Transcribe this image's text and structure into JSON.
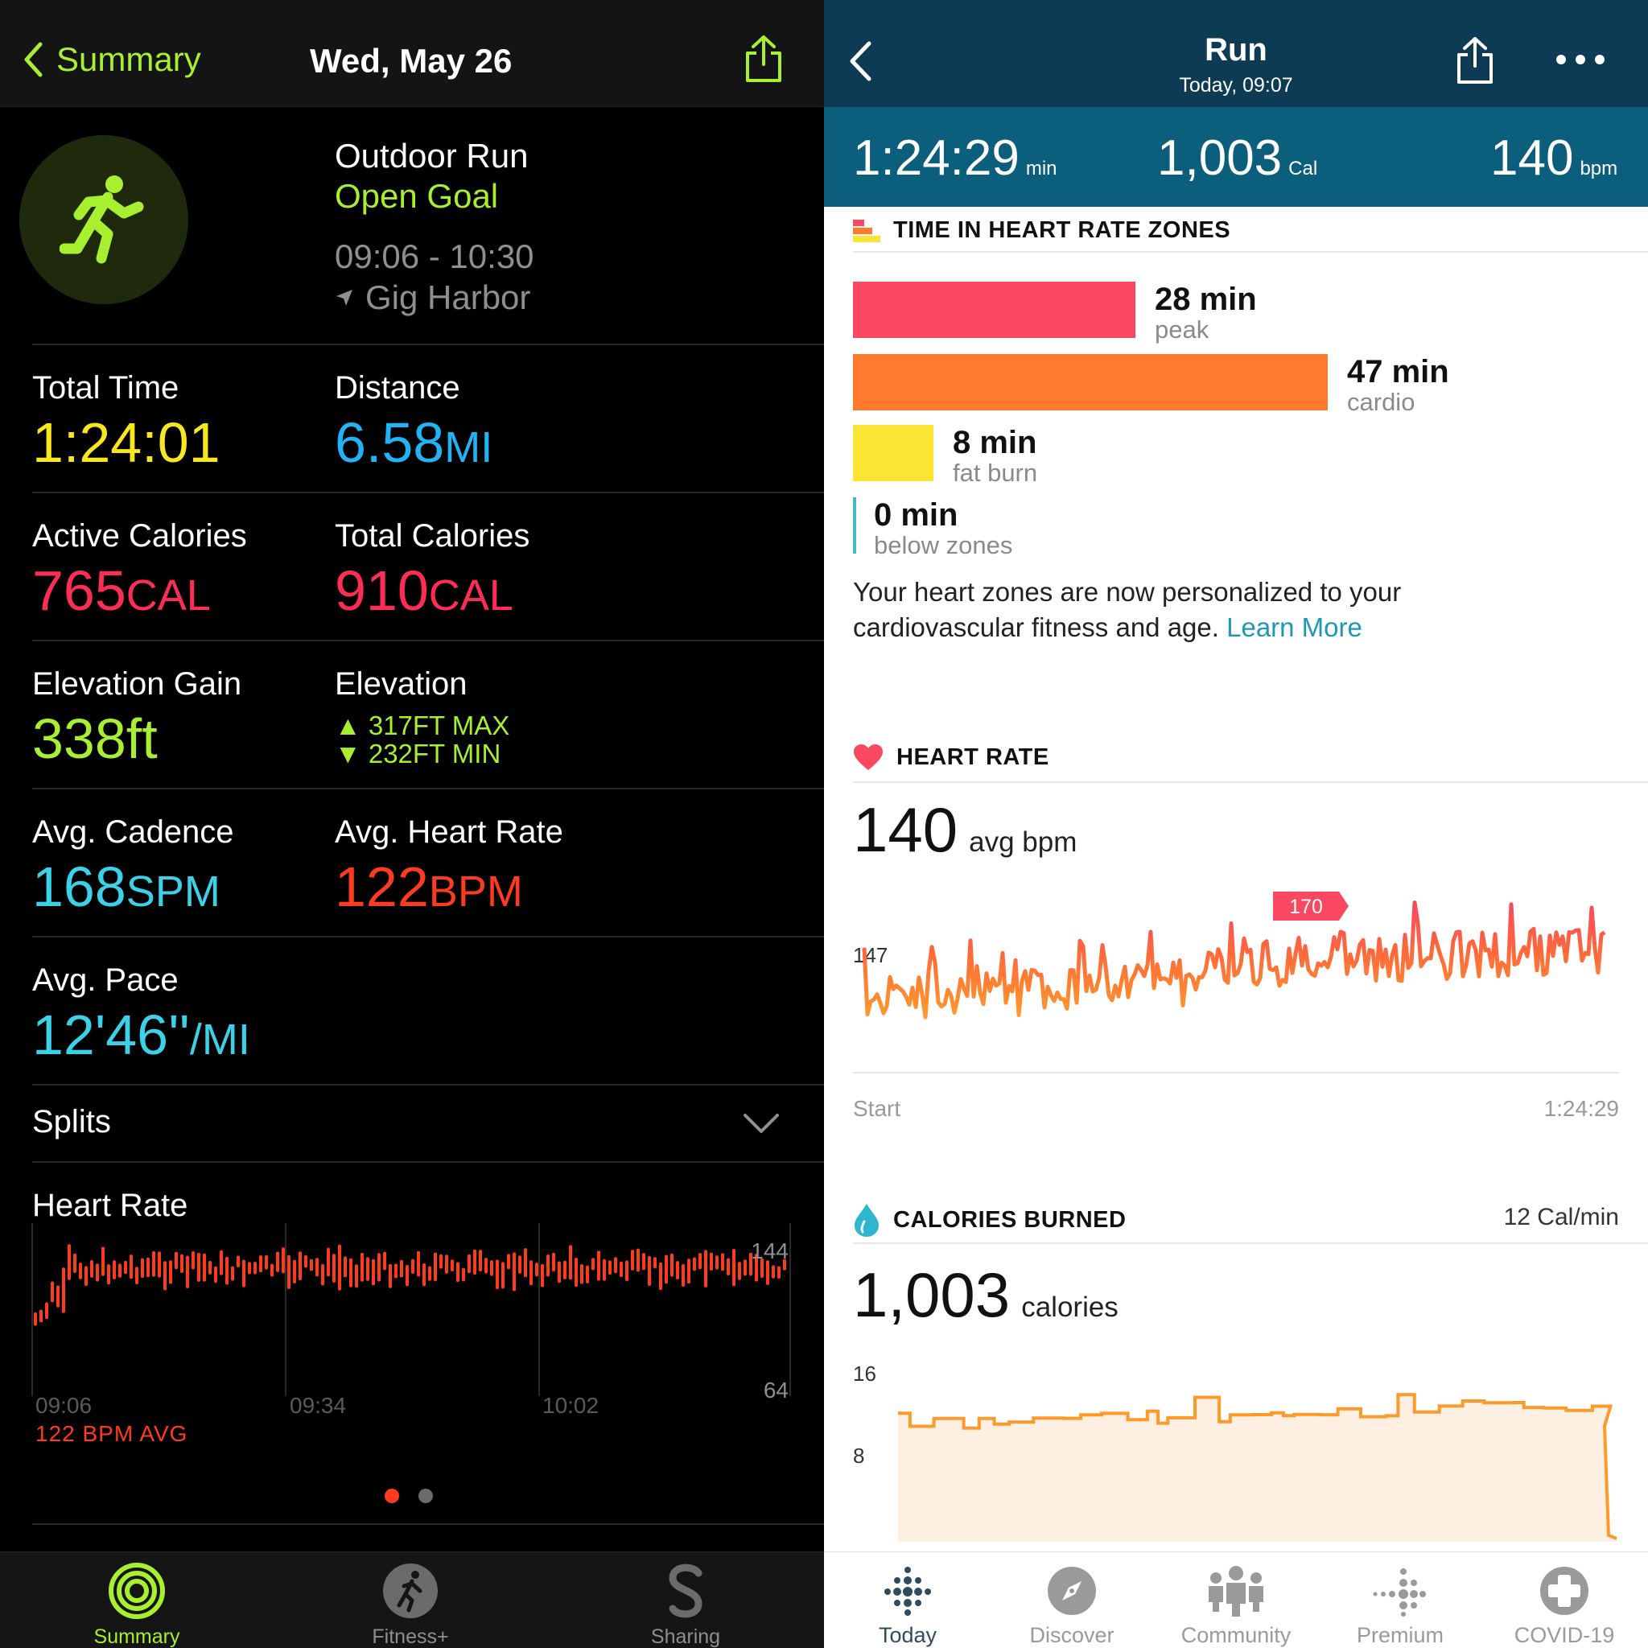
{
  "left": {
    "nav": {
      "back_label": "Summary",
      "date": "Wed, May 26"
    },
    "workout": {
      "title": "Outdoor Run",
      "goal": "Open Goal",
      "time_range": "09:06 - 10:30",
      "location": "Gig Harbor"
    },
    "metrics": {
      "total_time": {
        "label": "Total Time",
        "value": "1:24:01"
      },
      "distance": {
        "label": "Distance",
        "value": "6.58",
        "unit": "MI"
      },
      "active_calories": {
        "label": "Active Calories",
        "value": "765",
        "unit": "CAL"
      },
      "total_calories": {
        "label": "Total Calories",
        "value": "910",
        "unit": "CAL"
      },
      "elevation_gain": {
        "label": "Elevation Gain",
        "value": "338ft"
      },
      "elevation": {
        "label": "Elevation",
        "max": "317FT MAX",
        "min": "232FT MIN"
      },
      "avg_cadence": {
        "label": "Avg. Cadence",
        "value": "168",
        "unit": "SPM"
      },
      "avg_heart_rate": {
        "label": "Avg. Heart Rate",
        "value": "122",
        "unit": "BPM"
      },
      "avg_pace": {
        "label": "Avg. Pace",
        "value": "12'46''",
        "unit": "/MI"
      }
    },
    "splits_label": "Splits",
    "heart_rate": {
      "title": "Heart Rate",
      "avg_label": "122 BPM AVG",
      "x_labels": [
        "09:06",
        "09:34",
        "10:02"
      ],
      "y_max_label": "144",
      "y_min_label": "64"
    },
    "tabs": [
      {
        "label": "Summary",
        "icon": "activity-rings-icon",
        "active": true
      },
      {
        "label": "Fitness+",
        "icon": "fitness-plus-icon",
        "active": false
      },
      {
        "label": "Sharing",
        "icon": "sharing-icon",
        "active": false
      }
    ],
    "colors": {
      "accent_green": "#a8ef2f",
      "time_yellow": "#f8e71c",
      "distance_blue": "#1fb4f5",
      "calories_pink": "#ff2d55",
      "cadence_cyan": "#3ad2e8",
      "heart_red": "#ff3b1f"
    }
  },
  "right": {
    "header": {
      "title": "Run",
      "subtitle": "Today, 09:07"
    },
    "stats": [
      {
        "value": "1:24:29",
        "unit": "min"
      },
      {
        "value": "1,003",
        "unit": "Cal"
      },
      {
        "value": "140",
        "unit": "bpm"
      }
    ],
    "zones": {
      "title": "TIME IN HEART RATE ZONES",
      "items": [
        {
          "value": "28 min",
          "name": "peak",
          "minutes": 28,
          "color": "#f9485f"
        },
        {
          "value": "47 min",
          "name": "cardio",
          "minutes": 47,
          "color": "#ff7a2f"
        },
        {
          "value": "8 min",
          "name": "fat burn",
          "minutes": 8,
          "color": "#fce434"
        },
        {
          "value": "0 min",
          "name": "below zones",
          "minutes": 0,
          "color": "#49b6c4"
        }
      ],
      "note": "Your heart zones are now personalized to your cardiovascular fitness and age.",
      "learn_more": "Learn More"
    },
    "heart_rate": {
      "title": "HEART RATE",
      "avg_value": "140",
      "avg_unit": "avg bpm",
      "ref_label": "147",
      "peak_label": "170",
      "start_label": "Start",
      "end_label": "1:24:29"
    },
    "calories": {
      "title": "CALORIES BURNED",
      "rate": "12 Cal/min",
      "value": "1,003",
      "unit": "calories",
      "y_labels": [
        "16",
        "8"
      ]
    },
    "tabs": [
      {
        "label": "Today",
        "icon": "today-dots-icon",
        "active": true
      },
      {
        "label": "Discover",
        "icon": "compass-icon",
        "active": false
      },
      {
        "label": "Community",
        "icon": "community-icon",
        "active": false
      },
      {
        "label": "Premium",
        "icon": "premium-dots-icon",
        "active": false
      },
      {
        "label": "COVID-19",
        "icon": "plus-cross-icon",
        "active": false
      }
    ]
  }
}
